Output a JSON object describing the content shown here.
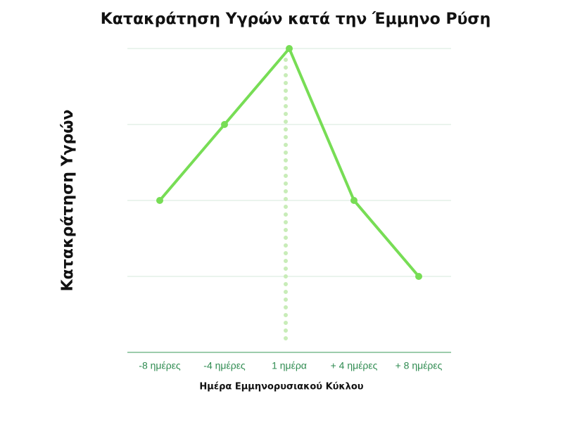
{
  "chart_data": {
    "type": "line",
    "title": "Κατακράτηση Υγρών κατά την Έμμηνο Ρύση",
    "x_label": "Ημέρα Εμμηνορυσιακού Κύκλου",
    "y_label": "Κατακράτηση Υγρών",
    "categories": [
      "-8 ημέρες",
      "-4 ημέρες",
      "1 ημέρα",
      "+ 4 ημέρες",
      "+ 8 ημέρες"
    ],
    "values": [
      2,
      3,
      4,
      2,
      1
    ],
    "color": "#77dd55",
    "ylim": [
      0,
      4
    ],
    "yticks": [
      0,
      1,
      2,
      3,
      4
    ],
    "grid": true
  }
}
